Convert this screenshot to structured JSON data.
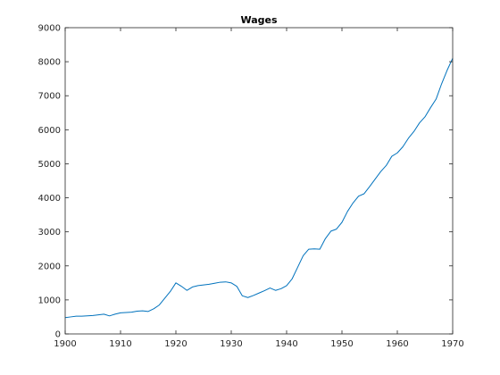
{
  "chart_data": {
    "type": "line",
    "title": "Wages",
    "xlabel": "",
    "ylabel": "",
    "xlim": [
      1900,
      1970
    ],
    "ylim": [
      0,
      9000
    ],
    "xticks": [
      1900,
      1910,
      1920,
      1930,
      1940,
      1950,
      1960,
      1970
    ],
    "yticks": [
      0,
      1000,
      2000,
      3000,
      4000,
      5000,
      6000,
      7000,
      8000,
      9000
    ],
    "grid": false,
    "legend": "none",
    "line_color": "#0072BD",
    "series": [
      {
        "x": [
          1900,
          1901,
          1902,
          1903,
          1904,
          1905,
          1906,
          1907,
          1908,
          1909,
          1910,
          1911,
          1912,
          1913,
          1914,
          1915,
          1916,
          1917,
          1918,
          1919,
          1920,
          1921,
          1922,
          1923,
          1924,
          1925,
          1926,
          1927,
          1928,
          1929,
          1930,
          1931,
          1932,
          1933,
          1934,
          1935,
          1936,
          1937,
          1938,
          1939,
          1940,
          1941,
          1942,
          1943,
          1944,
          1945,
          1946,
          1947,
          1948,
          1949,
          1950,
          1951,
          1952,
          1953,
          1954,
          1955,
          1956,
          1957,
          1958,
          1959,
          1960,
          1961,
          1962,
          1963,
          1964,
          1965,
          1966,
          1967,
          1968,
          1969,
          1970
        ],
        "values": [
          480,
          500,
          520,
          520,
          530,
          540,
          560,
          580,
          530,
          580,
          620,
          630,
          640,
          670,
          680,
          660,
          740,
          850,
          1050,
          1250,
          1500,
          1400,
          1280,
          1380,
          1420,
          1440,
          1460,
          1490,
          1520,
          1530,
          1500,
          1400,
          1120,
          1070,
          1130,
          1200,
          1270,
          1350,
          1280,
          1330,
          1420,
          1620,
          1960,
          2300,
          2490,
          2500,
          2490,
          2800,
          3020,
          3080,
          3280,
          3600,
          3850,
          4050,
          4120,
          4330,
          4550,
          4770,
          4950,
          5220,
          5320,
          5500,
          5750,
          5950,
          6200,
          6380,
          6650,
          6900,
          7350,
          7750,
          8100
        ]
      }
    ]
  }
}
